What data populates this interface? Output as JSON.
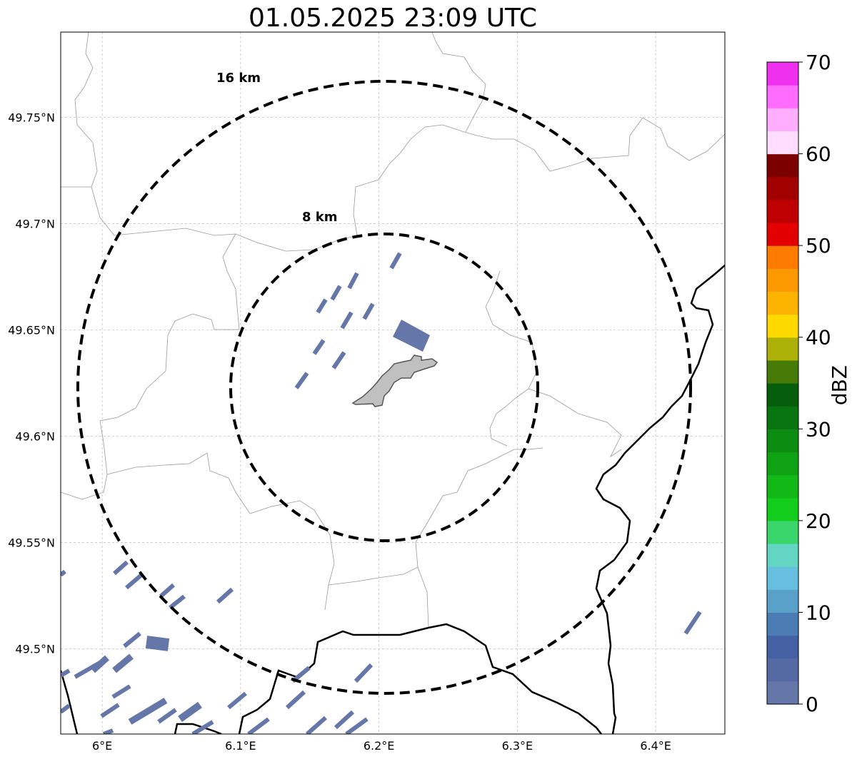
{
  "title": "01.05.2025 23:09 UTC",
  "map": {
    "lon_range": [
      5.97,
      6.45
    ],
    "lat_range": [
      49.46,
      49.79
    ],
    "lon_ticks": [
      {
        "value": 6.0,
        "label": "6°E"
      },
      {
        "value": 6.1,
        "label": "6.1°E"
      },
      {
        "value": 6.2,
        "label": "6.2°E"
      },
      {
        "value": 6.3,
        "label": "6.3°E"
      },
      {
        "value": 6.4,
        "label": "6.4°E"
      }
    ],
    "lat_ticks": [
      {
        "value": 49.5,
        "label": "49.5°N"
      },
      {
        "value": 49.55,
        "label": "49.55°N"
      },
      {
        "value": 49.6,
        "label": "49.6°N"
      },
      {
        "value": 49.65,
        "label": "49.65°N"
      },
      {
        "value": 49.7,
        "label": "49.7°N"
      },
      {
        "value": 49.75,
        "label": "49.75°N"
      }
    ],
    "gridlines": true,
    "range_rings": [
      {
        "label": "8 km",
        "radius_km": 8
      },
      {
        "label": "16 km",
        "radius_km": 16
      }
    ],
    "radar_center": {
      "lon": 6.203,
      "lat": 49.623
    },
    "ring_style": "black dashed"
  },
  "colorbar": {
    "title": "dBZ",
    "min": 0,
    "max": 70,
    "tick_labels": [
      {
        "value": 0,
        "label": "0"
      },
      {
        "value": 10,
        "label": "10"
      },
      {
        "value": 20,
        "label": "20"
      },
      {
        "value": 30,
        "label": "30"
      },
      {
        "value": 40,
        "label": "40"
      },
      {
        "value": 50,
        "label": "50"
      },
      {
        "value": 60,
        "label": "60"
      },
      {
        "value": 70,
        "label": "70"
      }
    ],
    "colors": [
      "#6577a8",
      "#556aa2",
      "#4461a4",
      "#4b7cb4",
      "#5aa1c9",
      "#66bfde",
      "#63d5c3",
      "#3bd66b",
      "#12cd1b",
      "#11b816",
      "#0fa313",
      "#0c8c10",
      "#087511",
      "#065e0c",
      "#467b07",
      "#abb107",
      "#fdd900",
      "#fdb400",
      "#fd9900",
      "#fd7c00",
      "#e30000",
      "#bf0000",
      "#a30000",
      "#7d0000",
      "#ffddff",
      "#ffaeff",
      "#ff6cff",
      "#ef31ef"
    ]
  },
  "echo_color": "#6577a8",
  "city_fill": "#c0c0c0"
}
